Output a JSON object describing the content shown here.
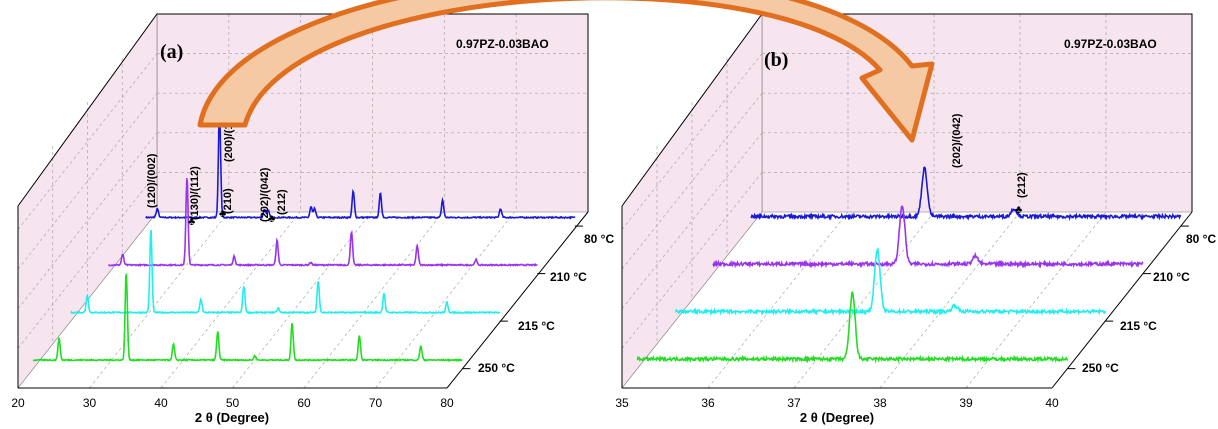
{
  "colors": {
    "wall": "#f6e4ef",
    "arrow_edge": "#e07020",
    "arrow_fill": "#f4c9a4"
  },
  "chart_data": [
    {
      "type": "line",
      "panel_label": "(a)",
      "title": "0.97PZ-0.03BAO",
      "xlabel": "2 θ (Degree)",
      "xlim": [
        20,
        80
      ],
      "x_ticks": [
        "20",
        "30",
        "40",
        "50",
        "60",
        "70",
        "80"
      ],
      "series": [
        {
          "name": "250 °C",
          "color": "#22dd22",
          "peaks": [
            [
              23.6,
              0.25
            ],
            [
              33.0,
              1.0
            ],
            [
              39.6,
              0.18
            ],
            [
              45.8,
              0.32
            ],
            [
              51.0,
              0.05
            ],
            [
              56.2,
              0.42
            ],
            [
              65.6,
              0.28
            ],
            [
              74.2,
              0.16
            ]
          ]
        },
        {
          "name": "215 °C",
          "color": "#22eeee",
          "peaks": [
            [
              22.3,
              0.2
            ],
            [
              31.2,
              0.95
            ],
            [
              38.2,
              0.15
            ],
            [
              44.2,
              0.3
            ],
            [
              49.0,
              0.05
            ],
            [
              54.6,
              0.36
            ],
            [
              63.8,
              0.22
            ],
            [
              72.6,
              0.12
            ]
          ]
        },
        {
          "name": "210 °C",
          "color": "#9933ee",
          "peaks": [
            [
              22.0,
              0.12
            ],
            [
              31.0,
              1.0
            ],
            [
              37.6,
              0.1
            ],
            [
              43.6,
              0.28
            ],
            [
              48.3,
              0.03
            ],
            [
              54.0,
              0.38
            ],
            [
              63.2,
              0.22
            ],
            [
              71.4,
              0.06
            ]
          ]
        },
        {
          "name": "80 °C",
          "color": "#1a1ad6",
          "peaks": [
            [
              21.6,
              0.1
            ],
            [
              30.3,
              1.22
            ],
            [
              36.6,
              0.09
            ],
            [
              37.1,
              0.08
            ],
            [
              43.1,
              0.12
            ],
            [
              43.6,
              0.1
            ],
            [
              49.0,
              0.3
            ],
            [
              52.8,
              0.28
            ],
            [
              61.5,
              0.2
            ],
            [
              69.6,
              0.1
            ]
          ]
        }
      ],
      "annotations": [
        "(120)/(002)",
        "(130)/(112)",
        "(210)",
        "(200)/(122)",
        "(202)/(042)",
        "(212)"
      ]
    },
    {
      "type": "line",
      "panel_label": "(b)",
      "title": "0.97PZ-0.03BAO",
      "xlabel": "2 θ (Degree)",
      "xlim": [
        35,
        40
      ],
      "x_ticks": [
        "35",
        "36",
        "37",
        "38",
        "39",
        "40"
      ],
      "series": [
        {
          "name": "250 °C",
          "color": "#22dd22",
          "peaks": [
            [
              37.5,
              0.85
            ]
          ]
        },
        {
          "name": "215 °C",
          "color": "#22eeee",
          "peaks": [
            [
              37.35,
              0.8
            ],
            [
              38.25,
              0.08
            ]
          ]
        },
        {
          "name": "210 °C",
          "color": "#9933ee",
          "peaks": [
            [
              37.2,
              0.75
            ],
            [
              38.05,
              0.1
            ]
          ]
        },
        {
          "name": "80 °C",
          "color": "#1a1ad6",
          "peaks": [
            [
              37.02,
              0.62
            ],
            [
              38.06,
              0.1
            ]
          ]
        }
      ],
      "annotations": [
        "(202)/(042)",
        "(212)"
      ]
    }
  ]
}
